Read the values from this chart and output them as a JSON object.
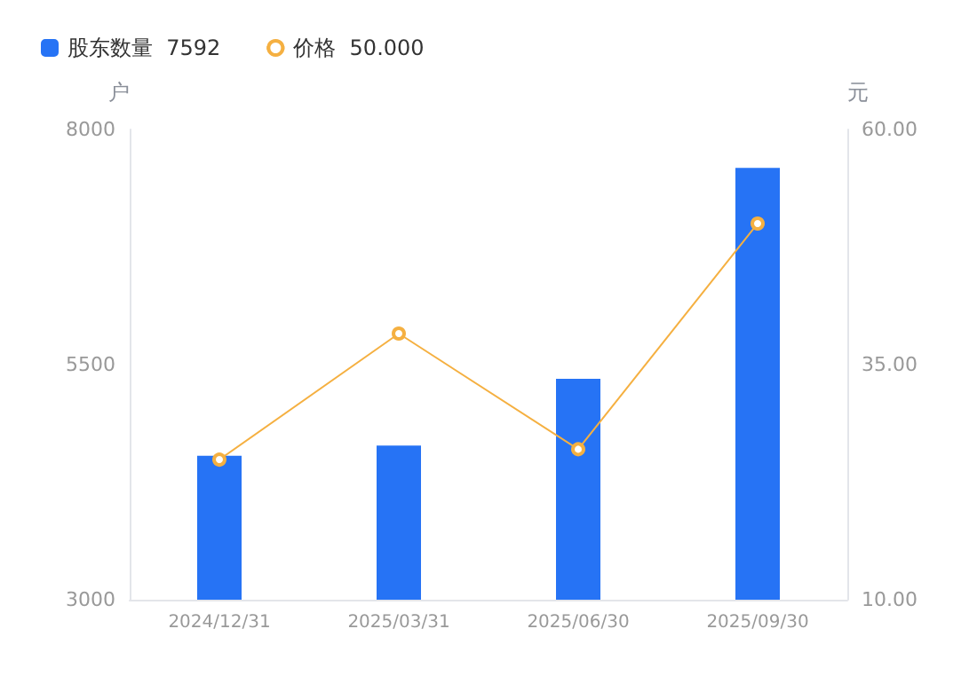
{
  "chart_data": {
    "type": "bar",
    "categories": [
      "2024/12/31",
      "2025/03/31",
      "2025/06/30",
      "2025/09/30"
    ],
    "ylabel": "户",
    "y2label": "元",
    "series": [
      {
        "name": "股东数量  7592",
        "color": "#2673f5",
        "values": [
          4530,
          4640,
          5350,
          7592
        ]
      },
      {
        "name": "价格  50.000",
        "type": "line",
        "axis": "y2",
        "color": "#f5b041",
        "values": [
          24.9,
          38.3,
          26.0,
          50.0
        ]
      }
    ],
    "ylim": [
      3000,
      8000
    ],
    "yticks": [
      3000,
      5500,
      8000
    ],
    "y2lim": [
      10,
      60
    ],
    "y2ticks": [
      {
        "value": 10,
        "label": "10.00"
      },
      {
        "value": 35,
        "label": "35.00"
      },
      {
        "value": 60,
        "label": "60.00"
      }
    ],
    "grid": false,
    "legend": "top left",
    "marker": "circle"
  }
}
